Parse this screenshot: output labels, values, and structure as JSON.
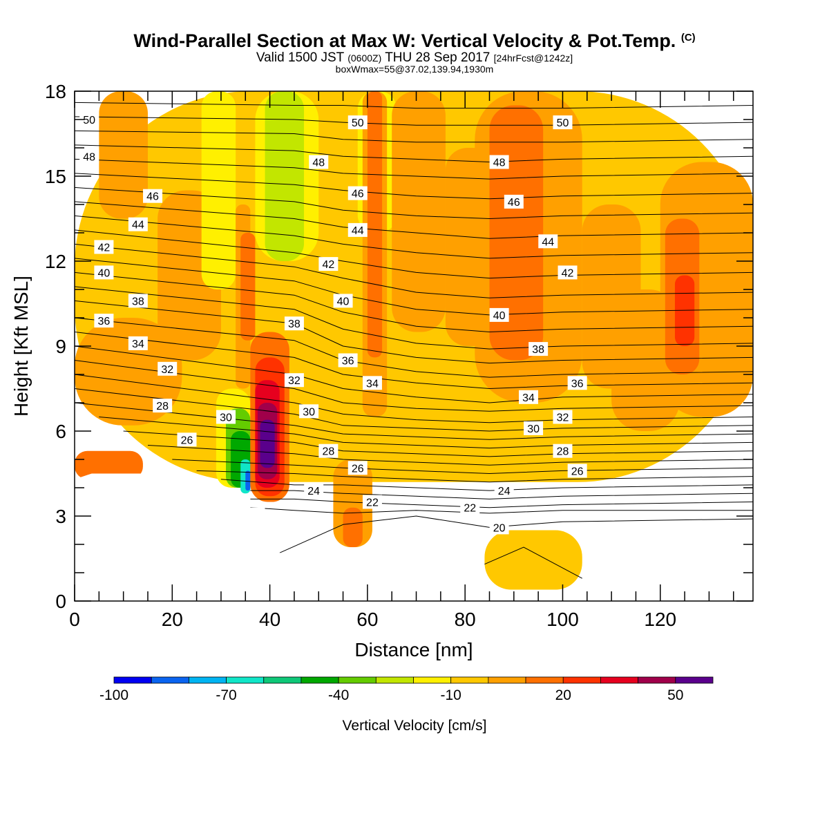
{
  "header": {
    "title": "Wind-Parallel Section at Max W: Vertical Velocity & Pot.Temp.",
    "copyright": "(C)",
    "valid_prefix": "Valid 1500 JST",
    "valid_utc": "(0600Z)",
    "valid_date": "THU 28 Sep 2017",
    "forecast": "[24hrFcst@1242z]",
    "box_info": "boxWmax=55@37.02,139.94,1930m"
  },
  "colors": {
    "w_scale": [
      "#0000f2",
      "#0a64f0",
      "#00b4f2",
      "#10e6c8",
      "#0ec878",
      "#00a800",
      "#64cc00",
      "#c2e600",
      "#fff000",
      "#ffc800",
      "#ffa000",
      "#ff7000",
      "#ff3200",
      "#e6001e",
      "#a0004a",
      "#5a008c"
    ],
    "terrain": "#ffffff"
  },
  "chart_data": {
    "type": "heatmap",
    "xlabel": "Distance [nm]",
    "ylabel": "Height [Kft MSL]",
    "xlim": [
      0,
      139
    ],
    "ylim": [
      0,
      18
    ],
    "x_ticks": [
      0,
      20,
      40,
      60,
      80,
      100,
      120
    ],
    "x_tick_labels": [
      "0",
      "20",
      "40",
      "60",
      "80",
      "100",
      "120"
    ],
    "y_ticks": [
      0,
      3,
      6,
      9,
      12,
      15,
      18
    ],
    "y_tick_labels": [
      "0",
      "3",
      "6",
      "9",
      "12",
      "15",
      "18"
    ],
    "colorbar": {
      "label": "Vertical Velocity [cm/s]",
      "levels": [
        -100,
        -90,
        -80,
        -70,
        -60,
        -50,
        -40,
        -30,
        -20,
        -10,
        0,
        10,
        20,
        30,
        40,
        50,
        60
      ],
      "tick_values": [
        -100,
        -70,
        -40,
        -10,
        20,
        50
      ],
      "tick_labels": [
        "-100",
        "-70",
        "-40",
        "-10",
        "20",
        "50"
      ]
    },
    "terrain_height_kft": [
      [
        0,
        4.3
      ],
      [
        3.5,
        4.5
      ],
      [
        20,
        4.5
      ],
      [
        20,
        4.3
      ],
      [
        23,
        4.3
      ],
      [
        23,
        3.6
      ],
      [
        36,
        3.6
      ],
      [
        36,
        3.3
      ],
      [
        39,
        3.3
      ],
      [
        39,
        2.3
      ],
      [
        42,
        2.3
      ],
      [
        42,
        1.7
      ],
      [
        45,
        1.7
      ],
      [
        45,
        1.3
      ],
      [
        48,
        1.3
      ],
      [
        48,
        1.6
      ],
      [
        52,
        1.6
      ],
      [
        52,
        1.9
      ],
      [
        58,
        1.9
      ],
      [
        58,
        1.6
      ],
      [
        65,
        1.6
      ],
      [
        65,
        1.9
      ],
      [
        74,
        1.9
      ],
      [
        74,
        1.3
      ],
      [
        78,
        1.3
      ],
      [
        78,
        1.0
      ],
      [
        81,
        1.0
      ],
      [
        81,
        0.7
      ],
      [
        84,
        0.7
      ],
      [
        84,
        0.4
      ],
      [
        139,
        0.4
      ]
    ],
    "theta_labels": [
      {
        "x": 3,
        "y": 17.0,
        "text": "50"
      },
      {
        "x": 58,
        "y": 16.9,
        "text": "50"
      },
      {
        "x": 100,
        "y": 16.9,
        "text": "50"
      },
      {
        "x": 3,
        "y": 15.7,
        "text": "48"
      },
      {
        "x": 50,
        "y": 15.5,
        "text": "48"
      },
      {
        "x": 87,
        "y": 15.5,
        "text": "48"
      },
      {
        "x": 16,
        "y": 14.3,
        "text": "46"
      },
      {
        "x": 58,
        "y": 14.4,
        "text": "46"
      },
      {
        "x": 90,
        "y": 14.1,
        "text": "46"
      },
      {
        "x": 13,
        "y": 13.3,
        "text": "44"
      },
      {
        "x": 58,
        "y": 13.1,
        "text": "44"
      },
      {
        "x": 97,
        "y": 12.7,
        "text": "44"
      },
      {
        "x": 6,
        "y": 12.5,
        "text": "42"
      },
      {
        "x": 52,
        "y": 11.9,
        "text": "42"
      },
      {
        "x": 101,
        "y": 11.6,
        "text": "42"
      },
      {
        "x": 6,
        "y": 11.6,
        "text": "40"
      },
      {
        "x": 55,
        "y": 10.6,
        "text": "40"
      },
      {
        "x": 87,
        "y": 10.1,
        "text": "40"
      },
      {
        "x": 13,
        "y": 10.6,
        "text": "38"
      },
      {
        "x": 45,
        "y": 9.8,
        "text": "38"
      },
      {
        "x": 95,
        "y": 8.9,
        "text": "38"
      },
      {
        "x": 6,
        "y": 9.9,
        "text": "36"
      },
      {
        "x": 56,
        "y": 8.5,
        "text": "36"
      },
      {
        "x": 103,
        "y": 7.7,
        "text": "36"
      },
      {
        "x": 13,
        "y": 9.1,
        "text": "34"
      },
      {
        "x": 61,
        "y": 7.7,
        "text": "34"
      },
      {
        "x": 93,
        "y": 7.2,
        "text": "34"
      },
      {
        "x": 19,
        "y": 8.2,
        "text": "32"
      },
      {
        "x": 45,
        "y": 7.8,
        "text": "32"
      },
      {
        "x": 100,
        "y": 6.5,
        "text": "32"
      },
      {
        "x": 18,
        "y": 6.9,
        "text": "28"
      },
      {
        "x": 31,
        "y": 6.5,
        "text": "30"
      },
      {
        "x": 48,
        "y": 6.7,
        "text": "30"
      },
      {
        "x": 94,
        "y": 6.1,
        "text": "30"
      },
      {
        "x": 23,
        "y": 5.7,
        "text": "26"
      },
      {
        "x": 52,
        "y": 5.3,
        "text": "28"
      },
      {
        "x": 100,
        "y": 5.3,
        "text": "28"
      },
      {
        "x": 58,
        "y": 4.7,
        "text": "26"
      },
      {
        "x": 103,
        "y": 4.6,
        "text": "26"
      },
      {
        "x": 49,
        "y": 3.9,
        "text": "24"
      },
      {
        "x": 88,
        "y": 3.9,
        "text": "24"
      },
      {
        "x": 61,
        "y": 3.5,
        "text": "22"
      },
      {
        "x": 81,
        "y": 3.3,
        "text": "22"
      },
      {
        "x": 87,
        "y": 2.6,
        "text": "20"
      }
    ],
    "w_cells": [
      {
        "x": 0,
        "y": 4.2,
        "x2": 139,
        "y2": 18,
        "level": 9
      },
      {
        "x": 5,
        "y": 13.5,
        "x2": 15,
        "y2": 18,
        "level": 10
      },
      {
        "x": 17,
        "y": 8.5,
        "x2": 30,
        "y2": 14.5,
        "level": 10
      },
      {
        "x": 26,
        "y": 11,
        "x2": 33,
        "y2": 18,
        "level": 8
      },
      {
        "x": 33,
        "y": 7.5,
        "x2": 36,
        "y2": 14,
        "level": 10
      },
      {
        "x": 34,
        "y": 9.2,
        "x2": 37,
        "y2": 13,
        "level": 11
      },
      {
        "x": 37,
        "y": 12,
        "x2": 50,
        "y2": 18,
        "level": 8
      },
      {
        "x": 39,
        "y": 12,
        "x2": 47,
        "y2": 18,
        "level": 7
      },
      {
        "x": 58,
        "y": 13,
        "x2": 66,
        "y2": 18,
        "level": 8
      },
      {
        "x": 68,
        "y": 15,
        "x2": 71,
        "y2": 18,
        "level": 6
      },
      {
        "x": 59,
        "y": 6.5,
        "x2": 64,
        "y2": 18,
        "level": 10
      },
      {
        "x": 60,
        "y": 8.6,
        "x2": 63,
        "y2": 18,
        "level": 11
      },
      {
        "x": 65,
        "y": 9.5,
        "x2": 76,
        "y2": 18,
        "level": 10
      },
      {
        "x": 76,
        "y": 9.0,
        "x2": 86,
        "y2": 16,
        "level": 10
      },
      {
        "x": 82,
        "y": 7.0,
        "x2": 104,
        "y2": 18,
        "level": 10
      },
      {
        "x": 85,
        "y": 8.5,
        "x2": 96,
        "y2": 17.5,
        "level": 11
      },
      {
        "x": 86,
        "y": 9.5,
        "x2": 94,
        "y2": 15,
        "level": 11
      },
      {
        "x": 104,
        "y": 7.5,
        "x2": 116,
        "y2": 14,
        "level": 10
      },
      {
        "x": 110,
        "y": 6.0,
        "x2": 124,
        "y2": 11,
        "level": 10
      },
      {
        "x": 120,
        "y": 6.5,
        "x2": 139,
        "y2": 15.5,
        "level": 10
      },
      {
        "x": 121,
        "y": 8.0,
        "x2": 128,
        "y2": 13.5,
        "level": 11
      },
      {
        "x": 123,
        "y": 9.0,
        "x2": 127,
        "y2": 11.5,
        "level": 12
      },
      {
        "x": 0,
        "y": 6.2,
        "x2": 22,
        "y2": 10,
        "level": 10
      },
      {
        "x": 0,
        "y": 4.3,
        "x2": 14,
        "y2": 5.3,
        "level": 11
      },
      {
        "x": 29,
        "y": 4.0,
        "x2": 36,
        "y2": 7.5,
        "level": 8
      },
      {
        "x": 31,
        "y": 4.0,
        "x2": 36,
        "y2": 6.8,
        "level": 6
      },
      {
        "x": 32,
        "y": 4.0,
        "x2": 36,
        "y2": 6.0,
        "level": 5
      },
      {
        "x": 34,
        "y": 3.8,
        "x2": 36,
        "y2": 5.0,
        "level": 3
      },
      {
        "x": 35,
        "y": 3.9,
        "x2": 36,
        "y2": 4.6,
        "level": 1
      },
      {
        "x": 36,
        "y": 3.5,
        "x2": 44,
        "y2": 9.5,
        "level": 11
      },
      {
        "x": 37,
        "y": 3.7,
        "x2": 43,
        "y2": 8.6,
        "level": 12
      },
      {
        "x": 37,
        "y": 4.0,
        "x2": 42,
        "y2": 7.8,
        "level": 13
      },
      {
        "x": 37.5,
        "y": 4.3,
        "x2": 41.5,
        "y2": 7.0,
        "level": 14
      },
      {
        "x": 38,
        "y": 4.7,
        "x2": 41,
        "y2": 6.4,
        "level": 15
      },
      {
        "x": 53,
        "y": 1.9,
        "x2": 61,
        "y2": 5.0,
        "level": 10
      },
      {
        "x": 55,
        "y": 1.9,
        "x2": 59,
        "y2": 3.3,
        "level": 11
      },
      {
        "x": 84,
        "y": 0.4,
        "x2": 104,
        "y2": 2.5,
        "level": 9
      }
    ],
    "theta_contours": [
      {
        "level": 20,
        "x": [
          84,
          92,
          104
        ],
        "y": [
          1.3,
          1.9,
          0.8
        ]
      },
      {
        "level": 20,
        "x": [
          42,
          55,
          70,
          85,
          100,
          139
        ],
        "y": [
          1.7,
          2.7,
          3.0,
          2.6,
          2.8,
          2.9
        ]
      },
      {
        "level": 21,
        "x": [
          36,
          45,
          55,
          70,
          85,
          100,
          139
        ],
        "y": [
          3.3,
          3.2,
          3.1,
          3.2,
          3.1,
          3.2,
          3.2
        ]
      },
      {
        "level": 22,
        "x": [
          36,
          45,
          55,
          70,
          85,
          100,
          139
        ],
        "y": [
          3.6,
          3.6,
          3.5,
          3.4,
          3.3,
          3.4,
          3.5
        ]
      },
      {
        "level": 23,
        "x": [
          36,
          45,
          55,
          70,
          85,
          100,
          139
        ],
        "y": [
          3.9,
          3.9,
          3.8,
          3.7,
          3.6,
          3.7,
          3.8
        ]
      },
      {
        "level": 24,
        "x": [
          30,
          45,
          55,
          70,
          85,
          100,
          139
        ],
        "y": [
          4.3,
          4.1,
          4.1,
          4.0,
          3.9,
          4.0,
          4.1
        ]
      },
      {
        "level": 25,
        "x": [
          25,
          45,
          55,
          70,
          85,
          100,
          139
        ],
        "y": [
          4.6,
          4.5,
          4.4,
          4.3,
          4.2,
          4.3,
          4.4
        ]
      },
      {
        "level": 26,
        "x": [
          20,
          45,
          55,
          70,
          85,
          100,
          139
        ],
        "y": [
          5.0,
          4.8,
          4.7,
          4.6,
          4.5,
          4.6,
          4.7
        ]
      },
      {
        "level": 27,
        "x": [
          15,
          45,
          55,
          70,
          85,
          100,
          139
        ],
        "y": [
          5.5,
          5.2,
          5.0,
          4.9,
          4.8,
          4.9,
          5.0
        ]
      },
      {
        "level": 28,
        "x": [
          10,
          45,
          55,
          70,
          85,
          100,
          139
        ],
        "y": [
          6.0,
          5.6,
          5.3,
          5.2,
          5.1,
          5.2,
          5.3
        ]
      },
      {
        "level": 29,
        "x": [
          5,
          45,
          55,
          70,
          85,
          100,
          139
        ],
        "y": [
          6.5,
          5.9,
          5.6,
          5.5,
          5.4,
          5.5,
          5.6
        ]
      },
      {
        "level": 30,
        "x": [
          0,
          45,
          55,
          70,
          85,
          100,
          139
        ],
        "y": [
          7.0,
          6.2,
          5.9,
          5.8,
          5.7,
          5.8,
          5.9
        ]
      },
      {
        "level": 31,
        "x": [
          0,
          45,
          55,
          70,
          85,
          100,
          139
        ],
        "y": [
          7.5,
          6.6,
          6.2,
          6.1,
          6.0,
          6.1,
          6.2
        ]
      },
      {
        "level": 32,
        "x": [
          0,
          45,
          55,
          70,
          85,
          100,
          139
        ],
        "y": [
          8.0,
          7.0,
          6.6,
          6.4,
          6.3,
          6.4,
          6.5
        ]
      },
      {
        "level": 33,
        "x": [
          0,
          45,
          55,
          70,
          85,
          100,
          139
        ],
        "y": [
          8.5,
          7.5,
          7.0,
          6.8,
          6.7,
          6.8,
          6.9
        ]
      },
      {
        "level": 34,
        "x": [
          0,
          45,
          55,
          70,
          85,
          100,
          139
        ],
        "y": [
          9.0,
          8.0,
          7.5,
          7.2,
          7.0,
          7.2,
          7.3
        ]
      },
      {
        "level": 35,
        "x": [
          0,
          45,
          55,
          70,
          85,
          100,
          139
        ],
        "y": [
          9.5,
          8.6,
          8.0,
          7.7,
          7.5,
          7.6,
          7.7
        ]
      },
      {
        "level": 36,
        "x": [
          0,
          45,
          55,
          70,
          85,
          100,
          139
        ],
        "y": [
          10.0,
          9.2,
          8.5,
          8.1,
          7.9,
          8.0,
          8.1
        ]
      },
      {
        "level": 37,
        "x": [
          0,
          45,
          55,
          70,
          85,
          100,
          139
        ],
        "y": [
          10.6,
          9.8,
          9.0,
          8.6,
          8.4,
          8.5,
          8.6
        ]
      },
      {
        "level": 38,
        "x": [
          0,
          45,
          55,
          70,
          85,
          100,
          139
        ],
        "y": [
          11.1,
          10.3,
          9.6,
          9.1,
          8.9,
          9.0,
          9.1
        ]
      },
      {
        "level": 39,
        "x": [
          0,
          45,
          55,
          70,
          85,
          100,
          139
        ],
        "y": [
          11.6,
          10.8,
          10.2,
          9.7,
          9.5,
          9.6,
          9.7
        ]
      },
      {
        "level": 40,
        "x": [
          0,
          45,
          55,
          70,
          85,
          100,
          139
        ],
        "y": [
          12.1,
          11.3,
          10.8,
          10.3,
          10.1,
          10.2,
          10.3
        ]
      },
      {
        "level": 41,
        "x": [
          0,
          45,
          55,
          70,
          85,
          100,
          139
        ],
        "y": [
          12.6,
          11.8,
          11.4,
          10.9,
          10.7,
          10.8,
          10.9
        ]
      },
      {
        "level": 42,
        "x": [
          0,
          45,
          55,
          70,
          85,
          100,
          139
        ],
        "y": [
          13.1,
          12.3,
          12.0,
          11.6,
          11.4,
          11.5,
          11.6
        ]
      },
      {
        "level": 43,
        "x": [
          0,
          45,
          55,
          70,
          85,
          100,
          139
        ],
        "y": [
          13.6,
          12.9,
          12.6,
          12.3,
          12.1,
          12.2,
          12.3
        ]
      },
      {
        "level": 44,
        "x": [
          0,
          45,
          55,
          70,
          85,
          100,
          139
        ],
        "y": [
          14.1,
          13.5,
          13.2,
          13.0,
          12.8,
          12.9,
          13.0
        ]
      },
      {
        "level": 45,
        "x": [
          0,
          45,
          55,
          70,
          85,
          100,
          139
        ],
        "y": [
          14.6,
          14.1,
          13.8,
          13.6,
          13.5,
          13.6,
          13.7
        ]
      },
      {
        "level": 46,
        "x": [
          0,
          45,
          55,
          70,
          85,
          100,
          139
        ],
        "y": [
          15.1,
          14.7,
          14.5,
          14.3,
          14.2,
          14.3,
          14.4
        ]
      },
      {
        "level": 47,
        "x": [
          0,
          45,
          55,
          70,
          85,
          100,
          139
        ],
        "y": [
          15.6,
          15.3,
          15.1,
          15.0,
          14.9,
          15.0,
          15.1
        ]
      },
      {
        "level": 48,
        "x": [
          0,
          45,
          55,
          70,
          85,
          100,
          139
        ],
        "y": [
          16.1,
          15.9,
          15.7,
          15.6,
          15.5,
          15.6,
          15.7
        ]
      },
      {
        "level": 49,
        "x": [
          0,
          45,
          55,
          70,
          85,
          100,
          139
        ],
        "y": [
          16.6,
          16.5,
          16.3,
          16.2,
          16.2,
          16.2,
          16.3
        ]
      },
      {
        "level": 50,
        "x": [
          0,
          45,
          55,
          70,
          85,
          100,
          139
        ],
        "y": [
          17.1,
          17.0,
          16.9,
          16.8,
          16.8,
          16.8,
          16.9
        ]
      },
      {
        "level": 51,
        "x": [
          0,
          45,
          55,
          70,
          85,
          100,
          139
        ],
        "y": [
          17.6,
          17.5,
          17.5,
          17.4,
          17.4,
          17.4,
          17.5
        ]
      }
    ]
  }
}
